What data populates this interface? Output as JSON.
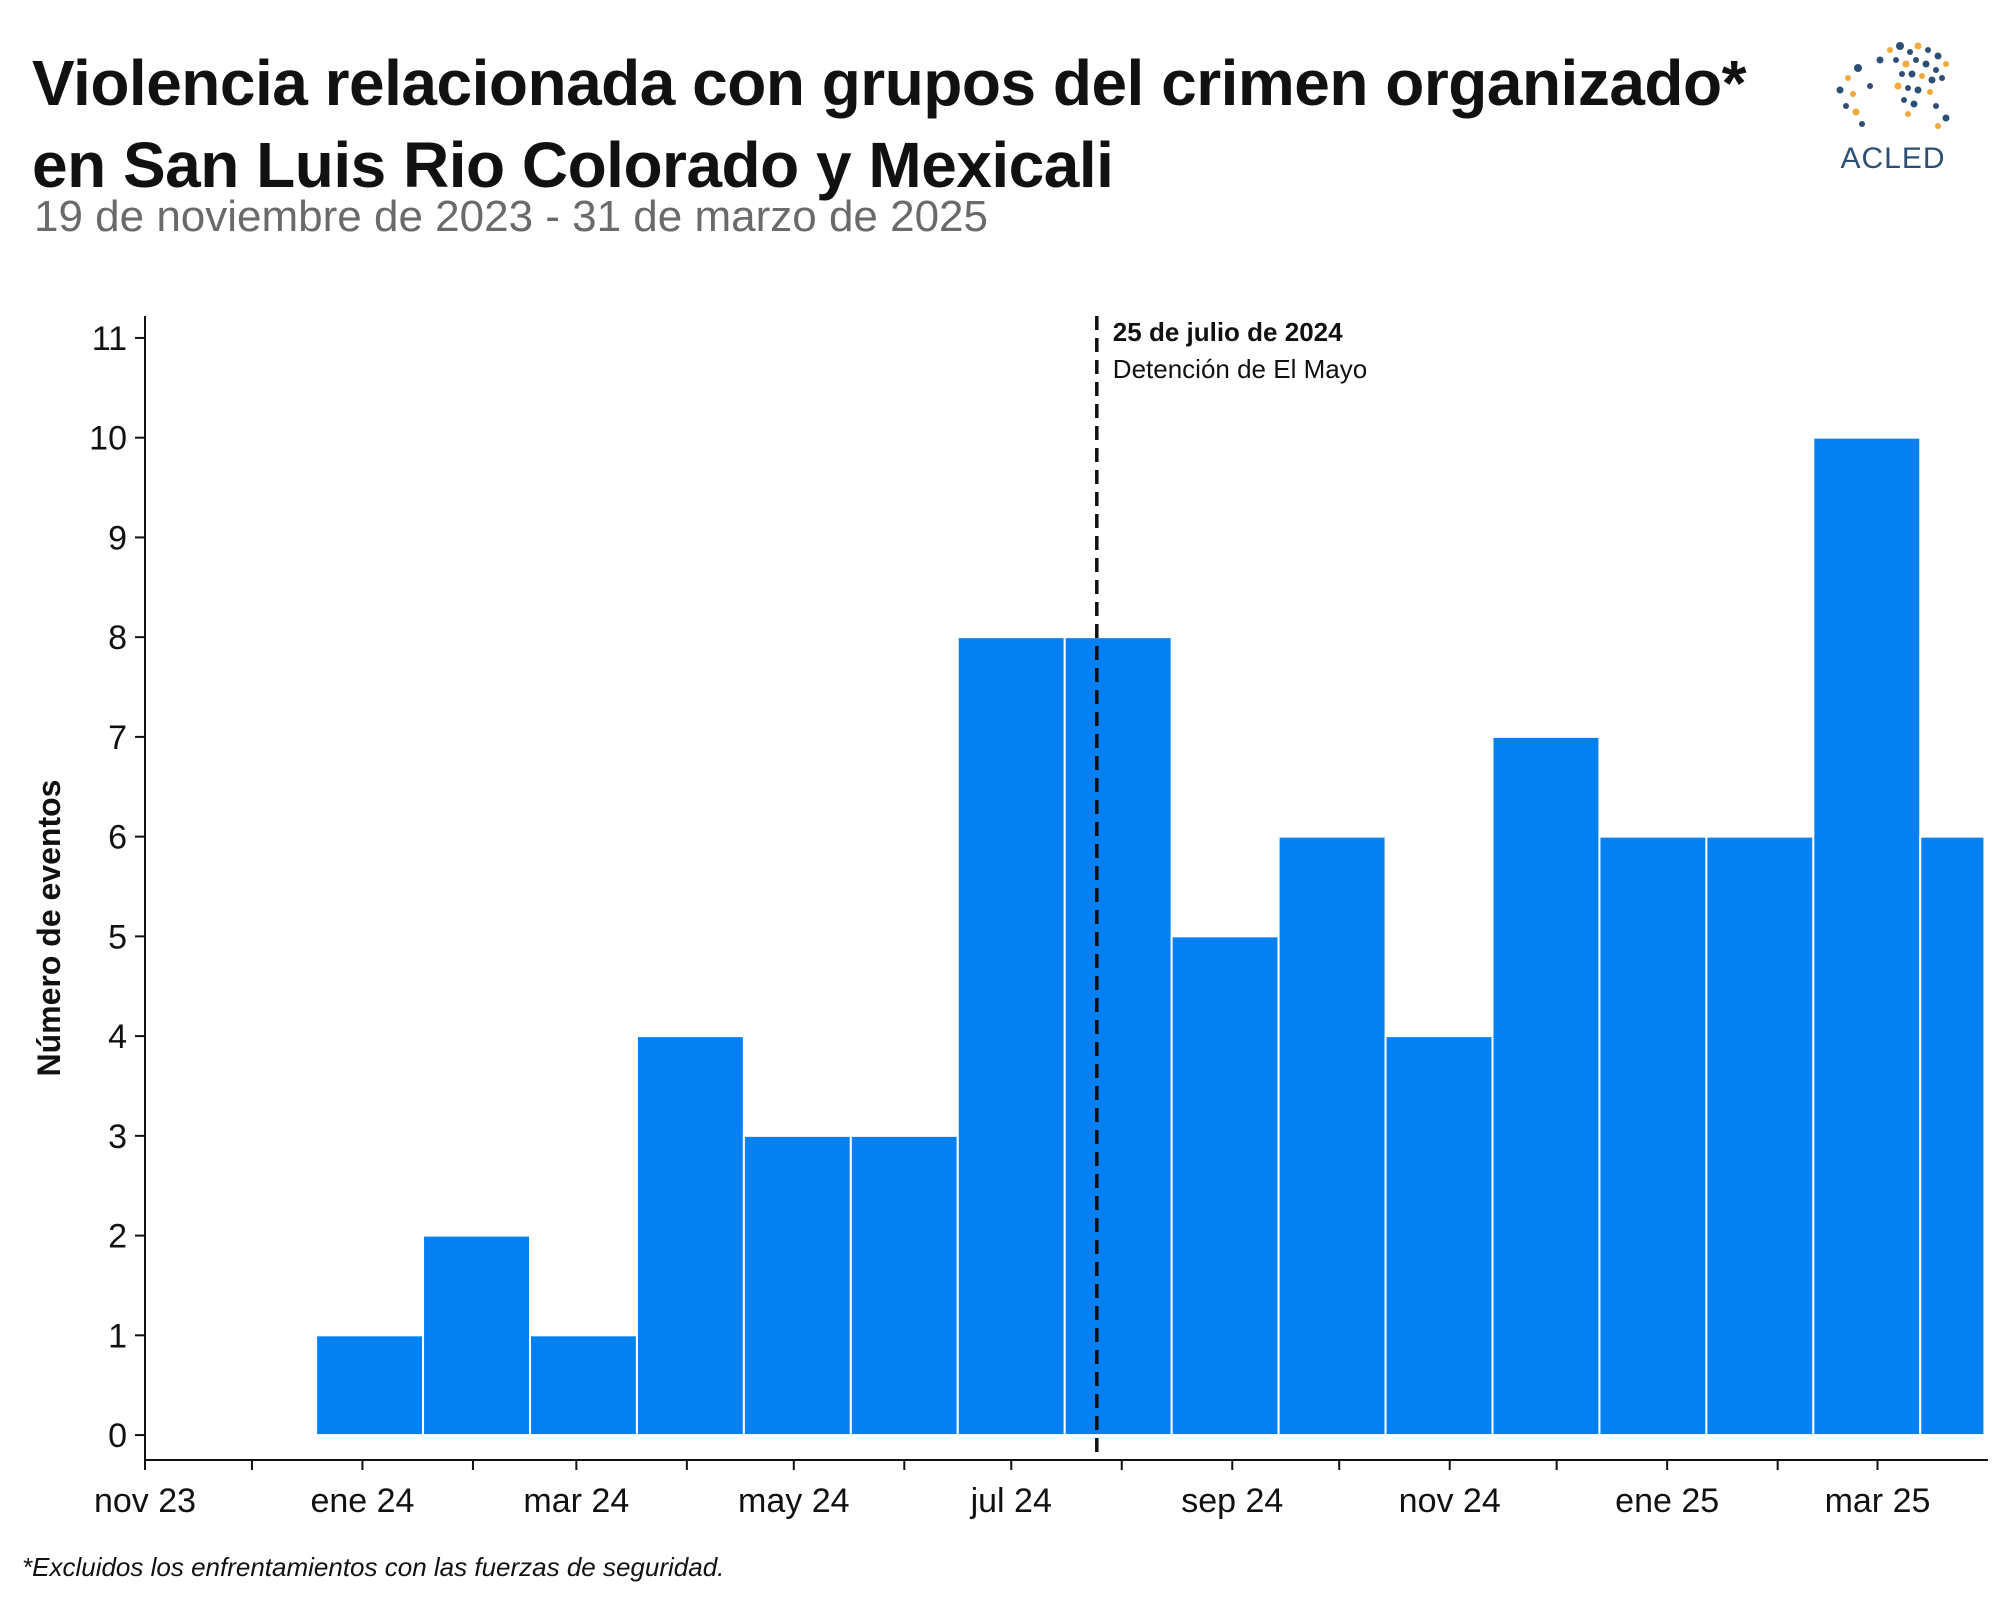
{
  "header": {
    "title_line1": "Violencia relacionada con grupos del crimen organizado*",
    "title_line2": "en San Luis Rio Colorado y Mexicali",
    "subtitle": "19 de noviembre de 2023 - 31 de marzo de 2025"
  },
  "logo": {
    "text": "ACLED",
    "icon": "acled-world-dots-logo",
    "colors": {
      "text": "#2d4f74",
      "dot_dark": "#2d4f74",
      "dot_accent": "#f2a93b"
    }
  },
  "footnote": "*Excluidos los enfrentamientos con las fuerzas de seguridad.",
  "colors": {
    "bar": "#0480f2",
    "bar_edge": "#ffffff",
    "axis": "#111111"
  },
  "chart_data": {
    "type": "bar",
    "title": "Violencia relacionada con grupos del crimen organizado* en San Luis Rio Colorado y Mexicali",
    "subtitle": "19 de noviembre de 2023 - 31 de marzo de 2025",
    "xlabel": "",
    "ylabel": "Número de eventos",
    "x_scale": "date",
    "xlim": [
      "2023-11-01",
      "2025-04-01"
    ],
    "ylim": [
      0,
      11
    ],
    "bar_edges": [
      "2023-11-19",
      "2023-12-19",
      "2024-01-18",
      "2024-02-17",
      "2024-03-18",
      "2024-04-17",
      "2024-05-17",
      "2024-06-16",
      "2024-07-16",
      "2024-08-15",
      "2024-09-14",
      "2024-10-14",
      "2024-11-13",
      "2024-12-13",
      "2025-01-12",
      "2025-02-11",
      "2025-03-13",
      "2025-03-31"
    ],
    "values": [
      0,
      1,
      2,
      1,
      4,
      3,
      3,
      8,
      8,
      5,
      6,
      4,
      7,
      6,
      6,
      10,
      6
    ],
    "y_ticks": [
      0,
      1,
      2,
      3,
      4,
      5,
      6,
      7,
      8,
      9,
      10,
      11
    ],
    "x_major_ticks": [
      {
        "date": "2023-11-01",
        "label": "nov 23"
      },
      {
        "date": "2024-01-01",
        "label": "ene 24"
      },
      {
        "date": "2024-03-01",
        "label": "mar 24"
      },
      {
        "date": "2024-05-01",
        "label": "may 24"
      },
      {
        "date": "2024-07-01",
        "label": "jul 24"
      },
      {
        "date": "2024-09-01",
        "label": "sep 24"
      },
      {
        "date": "2024-11-01",
        "label": "nov 24"
      },
      {
        "date": "2025-01-01",
        "label": "ene 25"
      },
      {
        "date": "2025-03-01",
        "label": "mar 25"
      }
    ],
    "x_minor_ticks": [
      "2023-12-01",
      "2024-02-01",
      "2024-04-01",
      "2024-06-01",
      "2024-08-01",
      "2024-10-01",
      "2024-12-01",
      "2025-02-01"
    ],
    "annotation": {
      "date": "2024-07-25",
      "style": "dashed-vertical-line",
      "label_bold": "25 de julio de 2024",
      "label": "Detención de El Mayo"
    },
    "grid": false,
    "legend": "none"
  }
}
